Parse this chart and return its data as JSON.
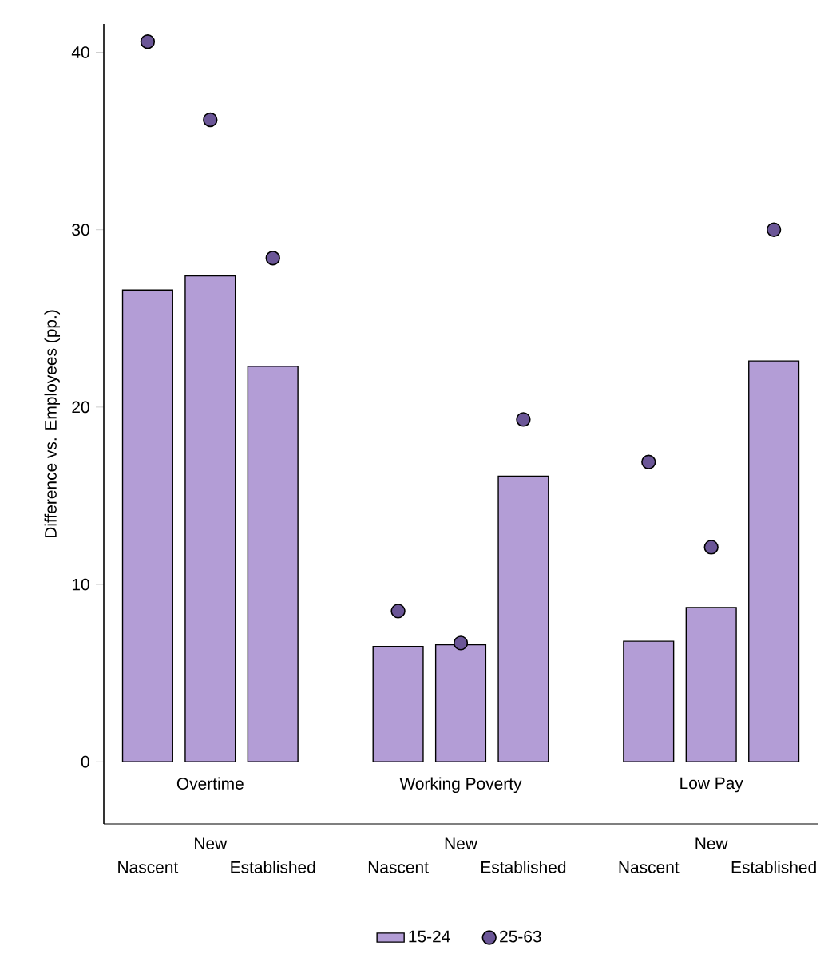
{
  "chart_data": {
    "type": "bar",
    "ylabel": "Difference vs. Employees (pp.)",
    "categories": [
      "Nascent",
      "New",
      "Established",
      "Nascent",
      "New",
      "Established",
      "Nascent",
      "New",
      "Established"
    ],
    "series": [
      {
        "name": "15-24",
        "color": "#b39dd6",
        "values": [
          26.6,
          27.4,
          22.3,
          6.5,
          6.6,
          16.1,
          6.8,
          8.7,
          22.6
        ]
      },
      {
        "name": "25-63",
        "type": "scatter",
        "marker": "circle",
        "color": "#6b5697",
        "values": [
          40.6,
          36.2,
          28.4,
          8.5,
          6.7,
          19.3,
          16.9,
          12.1,
          30.0
        ]
      }
    ],
    "annotations": [
      "Overtime",
      "Working Poverty",
      "Low Pay"
    ],
    "ylim": [
      -3.5,
      41.6
    ],
    "yticks": [
      0,
      10,
      20,
      30,
      40
    ],
    "legend": "bottom"
  }
}
